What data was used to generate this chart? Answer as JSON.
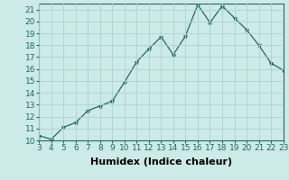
{
  "x": [
    3,
    4,
    5,
    6,
    7,
    8,
    9,
    10,
    11,
    12,
    13,
    14,
    15,
    16,
    17,
    18,
    19,
    20,
    21,
    22,
    23
  ],
  "y": [
    10.4,
    10.1,
    11.1,
    11.5,
    12.5,
    12.9,
    13.3,
    14.9,
    16.6,
    17.7,
    18.7,
    17.2,
    18.8,
    21.4,
    19.9,
    21.3,
    20.3,
    19.3,
    18.0,
    16.5,
    15.9
  ],
  "xlabel": "Humidex (Indice chaleur)",
  "line_color": "#1e6b5e",
  "marker": "*",
  "marker_color": "#1e6b5e",
  "bg_color": "#cceae6",
  "grid_color": "#aad4ce",
  "xlim": [
    3,
    23
  ],
  "ylim": [
    10,
    21.5
  ],
  "yticks": [
    10,
    11,
    12,
    13,
    14,
    15,
    16,
    17,
    18,
    19,
    20,
    21
  ],
  "xticks": [
    3,
    4,
    5,
    6,
    7,
    8,
    9,
    10,
    11,
    12,
    13,
    14,
    15,
    16,
    17,
    18,
    19,
    20,
    21,
    22,
    23
  ],
  "tick_fontsize": 6.5,
  "xlabel_fontsize": 8,
  "xlabel_fontweight": "bold"
}
